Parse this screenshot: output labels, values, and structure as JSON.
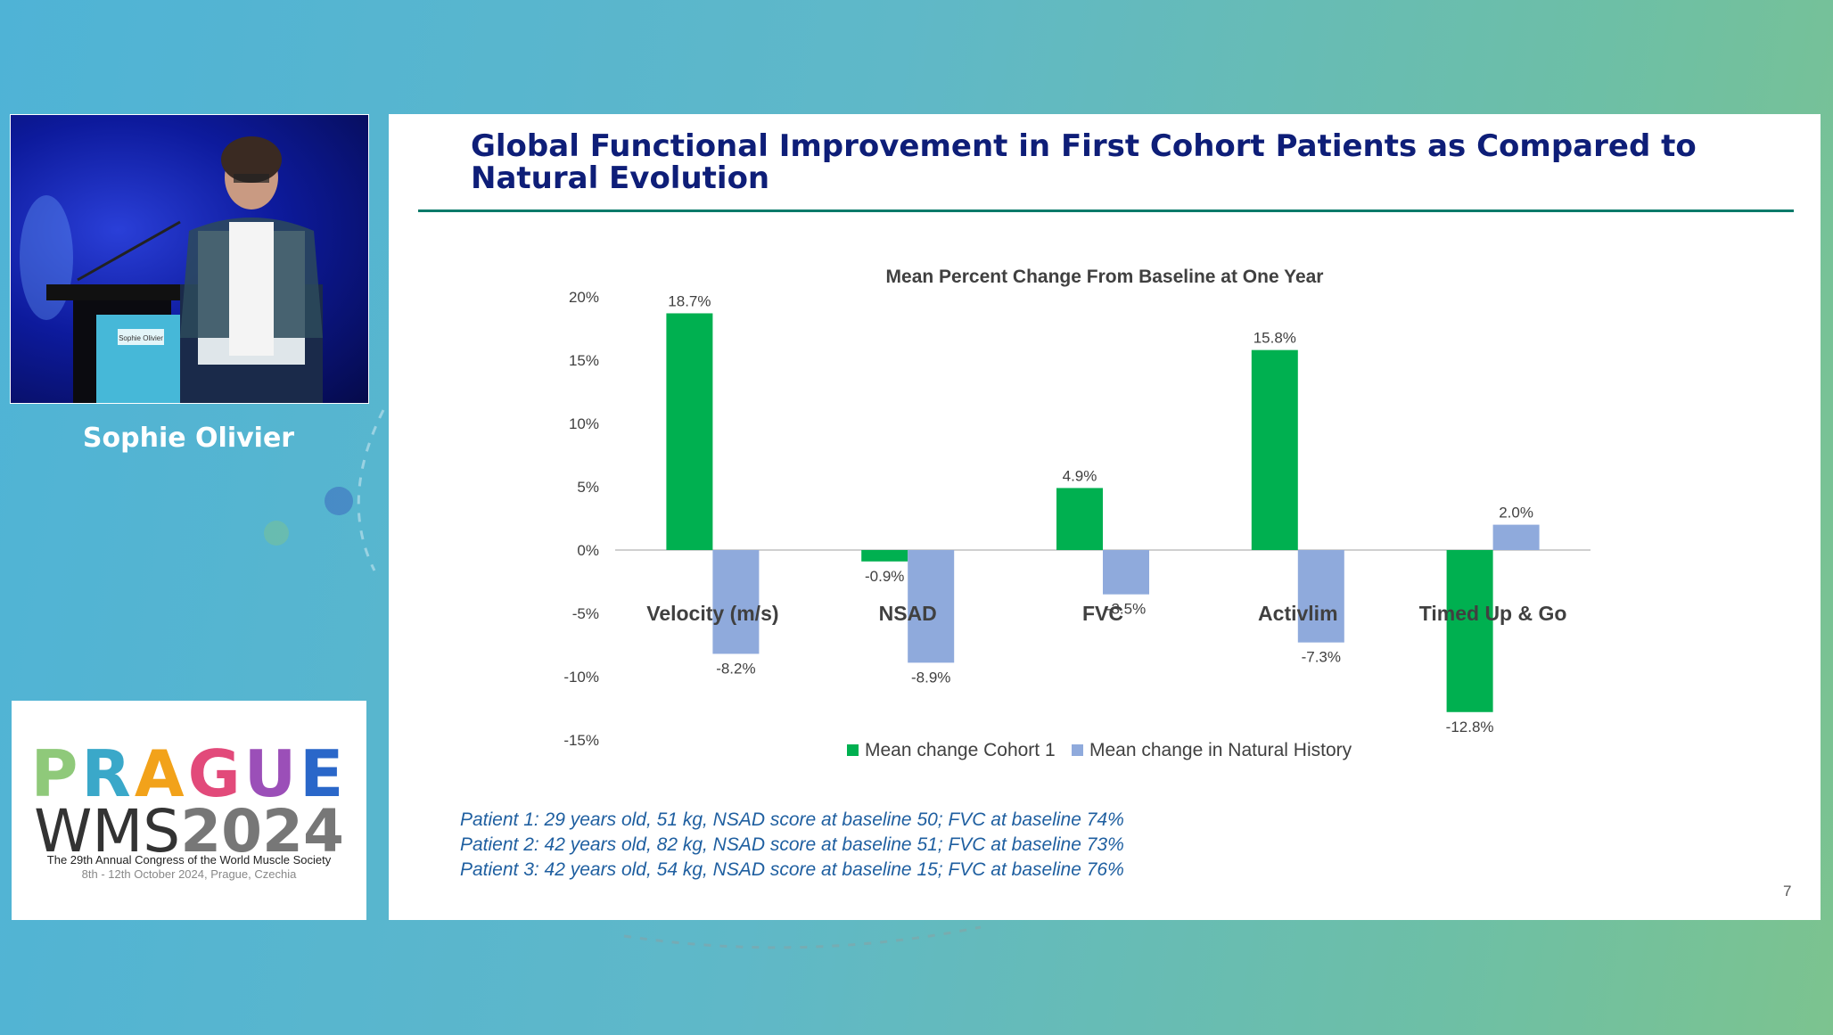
{
  "speaker": {
    "name": "Sophie Olivier",
    "podium_label": "Sophie Olivier"
  },
  "logo": {
    "line1_letters": [
      {
        "ch": "P",
        "color": "#8fc97a"
      },
      {
        "ch": "R",
        "color": "#3aa8c9"
      },
      {
        "ch": "A",
        "color": "#f2a21a"
      },
      {
        "ch": "G",
        "color": "#e24a7a"
      },
      {
        "ch": "U",
        "color": "#9b4fb8"
      },
      {
        "ch": "E",
        "color": "#2a67c9"
      }
    ],
    "line2_a": "WMS",
    "line2_b": "2024",
    "sub1": "The 29th Annual Congress of the World Muscle Society",
    "sub2": "8th - 12th October 2024, Prague, Czechia"
  },
  "slide": {
    "title": "Global Functional Improvement in First Cohort Patients as Compared to Natural Evolution",
    "page_number": "7",
    "notes": [
      "Patient 1: 29 years old, 51 kg, NSAD score at baseline 50; FVC at baseline 74%",
      "Patient 2: 42 years old, 82 kg, NSAD score at baseline 51; FVC at baseline 73%",
      "Patient 3: 42 years old, 54 kg, NSAD score at baseline 15; FVC at baseline 76%"
    ]
  },
  "chart_data": {
    "type": "bar",
    "title": "Mean Percent Change From Baseline at One Year",
    "categories": [
      "Velocity (m/s)",
      "NSAD",
      "FVC",
      "Activlim",
      "Timed Up & Go"
    ],
    "series": [
      {
        "name": "Mean change  Cohort 1",
        "color": "#00b050",
        "values": [
          18.7,
          -0.9,
          4.9,
          15.8,
          -12.8
        ],
        "labels": [
          "18.7%",
          "-0.9%",
          "4.9%",
          "15.8%",
          "-12.8%"
        ]
      },
      {
        "name": "Mean change in Natural History",
        "color": "#8faadc",
        "values": [
          -8.2,
          -8.9,
          -3.5,
          -7.3,
          2.0
        ],
        "labels": [
          "-8.2%",
          "-8.9%",
          "-3.5%",
          "-7.3%",
          "2.0%"
        ]
      }
    ],
    "yticks": [
      20,
      15,
      10,
      5,
      0,
      -5,
      -10,
      -15
    ],
    "ytick_labels": [
      "20%",
      "15%",
      "10%",
      "5%",
      "0%",
      "-5%",
      "-10%",
      "-15%"
    ],
    "ylim": [
      -15,
      20
    ],
    "legend": "bottom"
  }
}
